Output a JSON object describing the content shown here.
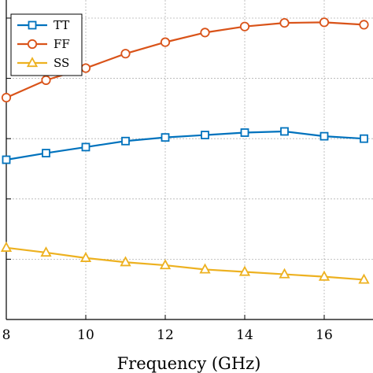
{
  "chart_data": {
    "type": "line",
    "xlabel": "Frequency (GHz)",
    "ylabel": "",
    "x": [
      8,
      9,
      10,
      11,
      12,
      13,
      14,
      15,
      16,
      17
    ],
    "x_ticks": [
      8,
      10,
      12,
      14,
      16
    ],
    "xlim": [
      8,
      17
    ],
    "ylim": [
      0,
      5.3
    ],
    "y_gridlines": [
      1,
      2,
      3,
      4,
      5
    ],
    "grid": true,
    "legend_position": "top-left",
    "series": [
      {
        "name": "TT",
        "marker": "square",
        "color": "#0072BD",
        "values": [
          2.65,
          2.76,
          2.86,
          2.96,
          3.02,
          3.06,
          3.1,
          3.12,
          3.04,
          3.0
        ]
      },
      {
        "name": "FF",
        "marker": "circle",
        "color": "#D95319",
        "values": [
          3.68,
          3.97,
          4.17,
          4.41,
          4.6,
          4.76,
          4.86,
          4.92,
          4.93,
          4.89
        ]
      },
      {
        "name": "SS",
        "marker": "triangle",
        "color": "#EDB120",
        "values": [
          1.19,
          1.11,
          1.02,
          0.95,
          0.9,
          0.83,
          0.79,
          0.75,
          0.71,
          0.66
        ]
      }
    ]
  }
}
